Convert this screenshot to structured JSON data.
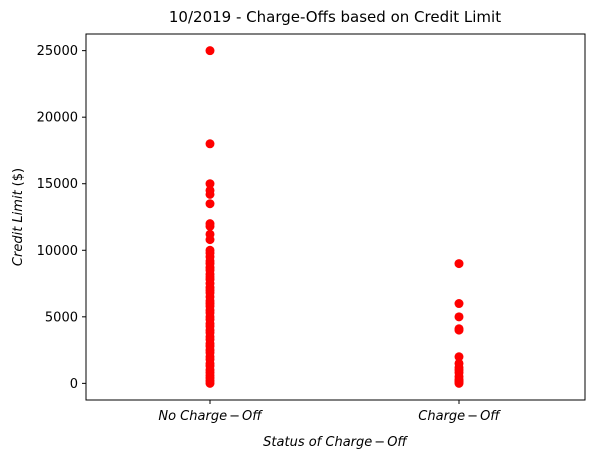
{
  "chart_data": {
    "type": "scatter",
    "title": "10/2019 - Charge-Offs based on Credit Limit",
    "xlabel_parts": [
      "Status of Charge",
      "−",
      "Off"
    ],
    "ylabel_parts": [
      "Credit Limit",
      "($)"
    ],
    "categories": [
      {
        "parts": [
          "No Charge",
          "−",
          "Off"
        ]
      },
      {
        "parts": [
          "Charge",
          "−",
          "Off"
        ]
      }
    ],
    "ylim": [
      -1250,
      26250
    ],
    "yticks": [
      "0",
      "5000",
      "10000",
      "15000",
      "20000",
      "25000"
    ],
    "marker_color": "#ff0000",
    "grid": false,
    "series": [
      {
        "category_index": 0,
        "values": [
          25000,
          18000,
          15000,
          14500,
          14200,
          13500,
          12000,
          11800,
          11200,
          10800,
          10000,
          9800,
          9500,
          9200,
          9000,
          8700,
          8500,
          8200,
          8000,
          7800,
          7500,
          7200,
          7000,
          6800,
          6500,
          6200,
          6000,
          5800,
          5500,
          5300,
          5000,
          4800,
          4500,
          4300,
          4000,
          3800,
          3500,
          3300,
          3000,
          2800,
          2500,
          2300,
          2000,
          1800,
          1500,
          1300,
          1000,
          800,
          600,
          400,
          200,
          0
        ]
      },
      {
        "category_index": 1,
        "values": [
          9000,
          6000,
          5000,
          4100,
          4000,
          2000,
          1500,
          1200,
          1000,
          800,
          500,
          300,
          200,
          100,
          0
        ]
      }
    ]
  }
}
